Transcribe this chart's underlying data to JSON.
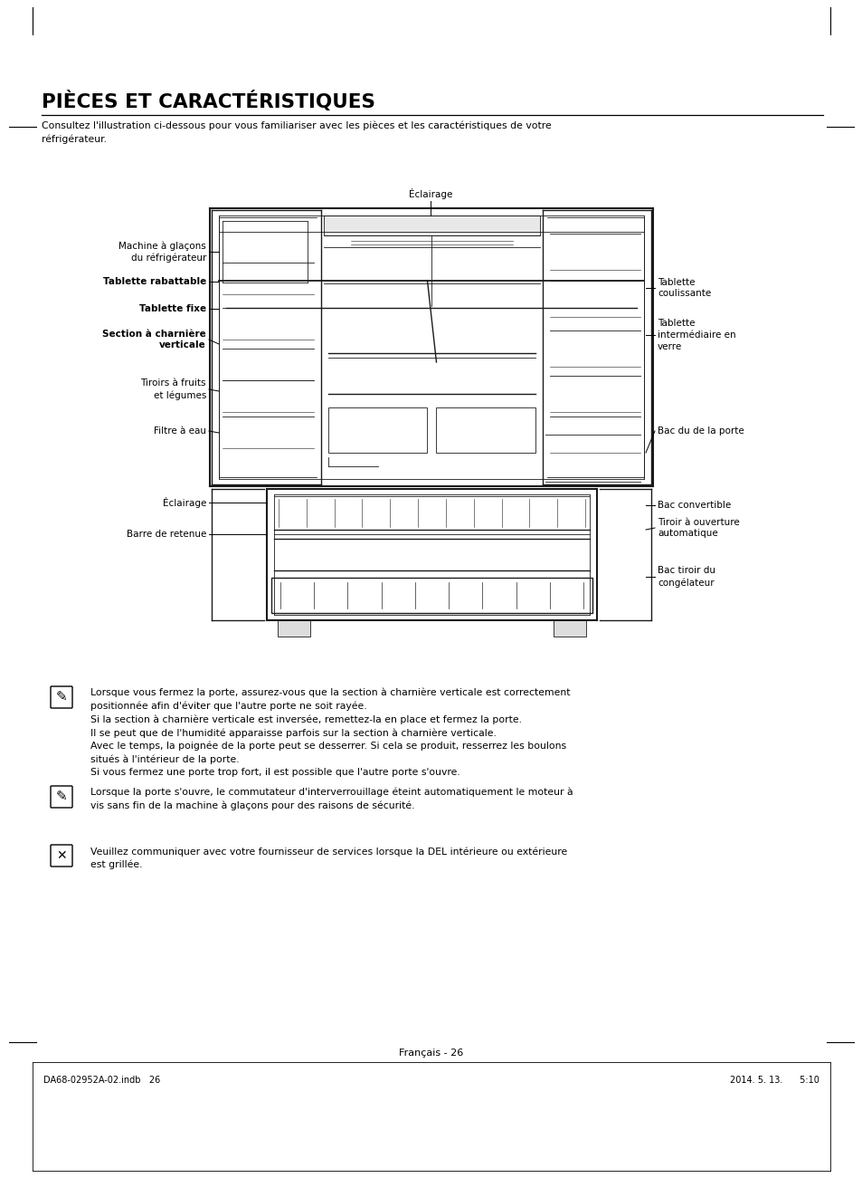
{
  "title": "PIÈCES ET CARACTÉRISTIQUES",
  "subtitle": "Consultez l'illustration ci-dessous pour vous familiariser avec les pièces et les caractéristiques de votre\nréfrigérateur.",
  "page_label": "Français - 26",
  "footer_left": "DA68-02952A-02.indb   26",
  "footer_right": "2014. 5. 13.      5:10",
  "bg_color": "#ffffff",
  "note1": "Lorsque vous fermez la porte, assurez-vous que la section à charnière verticale est correctement\npositionnée afin d'éviter que l'autre porte ne soit rayée.\nSi la section à charnière verticale est inversée, remettez-la en place et fermez la porte.\nIl se peut que de l'humidité apparaisse parfois sur la section à charnière verticale.\nAvec le temps, la poignée de la porte peut se desserrer. Si cela se produit, resserrez les boulons\nsitués à l'intérieur de la porte.\nSi vous fermez une porte trop fort, il est possible que l'autre porte s'ouvre.",
  "note2": "Lorsque la porte s'ouvre, le commutateur d'interverrouillage éteint automatiquement le moteur à\nvis sans fin de la machine à glaçons pour des raisons de sécurité.",
  "note3": "Veuillez communiquer avec votre fournisseur de services lorsque la DEL intérieure ou extérieure\nest grillée."
}
